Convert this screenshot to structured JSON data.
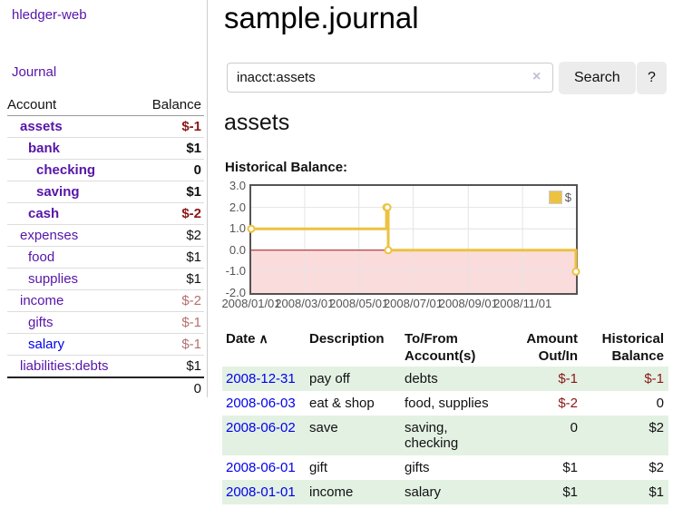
{
  "app": {
    "title": "hledger-web",
    "nav": {
      "journal": "Journal"
    }
  },
  "colors": {
    "link_purple": "#5715a8",
    "link_blue": "#0000ee",
    "negative_strong": "#8b1717",
    "negative_dim": "#b66f6f",
    "row_green": "#e3f1e3",
    "chart_line": "#edc240"
  },
  "sidebar": {
    "accounts": {
      "header": {
        "account": "Account",
        "balance": "Balance"
      },
      "rows": [
        {
          "name": "assets",
          "balance": "$-1"
        },
        {
          "name": "bank",
          "balance": "$1"
        },
        {
          "name": "checking",
          "balance": "0"
        },
        {
          "name": "saving",
          "balance": "$1"
        },
        {
          "name": "cash",
          "balance": "$-2"
        },
        {
          "name": "expenses",
          "balance": "$2"
        },
        {
          "name": "food",
          "balance": "$1"
        },
        {
          "name": "supplies",
          "balance": "$1"
        },
        {
          "name": "income",
          "balance": "$-2"
        },
        {
          "name": "gifts",
          "balance": "$-1"
        },
        {
          "name": "salary",
          "balance": "$-1"
        },
        {
          "name": "liabilities:debts",
          "balance": "$1"
        }
      ],
      "total": "0"
    }
  },
  "main": {
    "title": "sample.journal",
    "search": {
      "value": "inacct:assets",
      "clear_label": "×",
      "submit_label": "Search",
      "help_label": "?"
    },
    "account_heading": "assets",
    "section_label": "Historical Balance:"
  },
  "chart_data": {
    "type": "line",
    "title": "Historical Balance",
    "step": true,
    "x_range": [
      "2008-01-01",
      "2008-12-31"
    ],
    "ylim": [
      -2.0,
      3.0
    ],
    "yticks": [
      3.0,
      2.0,
      1.0,
      0.0,
      -1.0,
      -2.0
    ],
    "xticks": [
      "2008/01/01",
      "2008/03/01",
      "2008/05/01",
      "2008/07/01",
      "2008/09/01",
      "2008/11/01"
    ],
    "series": [
      {
        "name": "$",
        "color": "#edc240",
        "points": [
          {
            "date": "2008-01-01",
            "value": 1
          },
          {
            "date": "2008-06-01",
            "value": 2
          },
          {
            "date": "2008-06-02",
            "value": 2
          },
          {
            "date": "2008-06-03",
            "value": 0
          },
          {
            "date": "2008-12-31",
            "value": -1
          }
        ]
      }
    ],
    "legend": {
      "label": "$",
      "position": "top-right"
    },
    "negative_region": {
      "below": 0,
      "fill": "#fbdcdc",
      "line_color": "#a01010"
    },
    "grid": {
      "on": true,
      "color": "#e4e4e4",
      "border_color": "#545454"
    }
  },
  "register": {
    "headers": {
      "date": "Date",
      "sort_indicator": "∧",
      "description": "Description",
      "accounts": "To/From Account(s)",
      "amount": "Amount Out/In",
      "balance": "Historical Balance"
    },
    "rows": [
      {
        "date": "2008-12-31",
        "description": "pay off",
        "accounts": "debts",
        "amount": "$-1",
        "balance": "$-1"
      },
      {
        "date": "2008-06-03",
        "description": "eat & shop",
        "accounts": "food, supplies",
        "amount": "$-2",
        "balance": "0"
      },
      {
        "date": "2008-06-02",
        "description": "save",
        "accounts": "saving, checking",
        "amount": "0",
        "balance": "$2"
      },
      {
        "date": "2008-06-01",
        "description": "gift",
        "accounts": "gifts",
        "amount": "$1",
        "balance": "$2"
      },
      {
        "date": "2008-01-01",
        "description": "income",
        "accounts": "salary",
        "amount": "$1",
        "balance": "$1"
      }
    ]
  }
}
